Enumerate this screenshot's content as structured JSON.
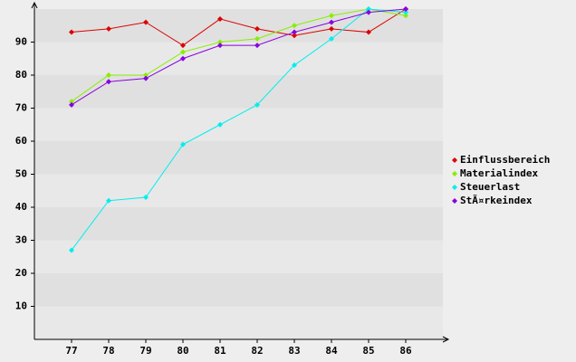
{
  "chart_data": {
    "type": "line",
    "x": [
      77,
      78,
      79,
      80,
      81,
      82,
      83,
      84,
      85,
      86
    ],
    "xlim": [
      76,
      87
    ],
    "xticks": [
      77,
      78,
      79,
      80,
      81,
      82,
      83,
      84,
      85,
      86
    ],
    "ylim": [
      0,
      100
    ],
    "yticks": [
      10,
      20,
      30,
      40,
      50,
      60,
      70,
      80,
      90
    ],
    "grid": true,
    "legend": "right",
    "series": [
      {
        "name": "Einflussbereich",
        "color": "#dd0000",
        "values": [
          93,
          94,
          96,
          89,
          97,
          94,
          92,
          94,
          93,
          100
        ]
      },
      {
        "name": "Materialindex",
        "color": "#88ee00",
        "values": [
          72,
          80,
          80,
          87,
          90,
          91,
          95,
          98,
          100,
          98
        ]
      },
      {
        "name": "Steuerlast",
        "color": "#00eeee",
        "values": [
          27,
          42,
          43,
          59,
          65,
          71,
          83,
          91,
          100,
          99
        ]
      },
      {
        "name": "StÃ¤rkeindex",
        "color": "#8800dd",
        "values": [
          71,
          78,
          79,
          85,
          89,
          89,
          93,
          96,
          99,
          100
        ]
      }
    ]
  }
}
